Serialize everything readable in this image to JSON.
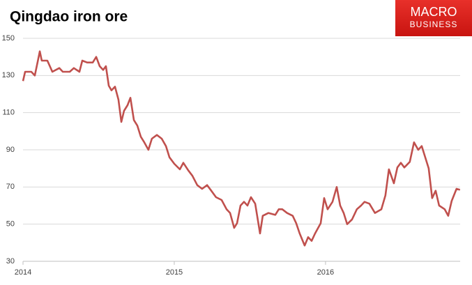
{
  "chart_data": {
    "type": "line",
    "title": "Qingdao iron ore",
    "logo": {
      "line1": "MACRO",
      "line2": "BUSINESS"
    },
    "x": [
      2014.0,
      2014.014,
      2014.055,
      2014.078,
      2014.101,
      2014.111,
      2014.124,
      2014.161,
      2014.194,
      2014.24,
      2014.263,
      2014.309,
      2014.336,
      2014.373,
      2014.392,
      2014.424,
      2014.461,
      2014.484,
      2014.507,
      2014.53,
      2014.548,
      2014.567,
      2014.585,
      2014.608,
      2014.631,
      2014.65,
      2014.668,
      2014.691,
      2014.71,
      2014.733,
      2014.756,
      2014.779,
      2014.802,
      2014.829,
      2014.852,
      2014.885,
      2014.917,
      2014.945,
      2014.968,
      2015.0,
      2015.037,
      2015.06,
      2015.092,
      2015.12,
      2015.152,
      2015.184,
      2015.217,
      2015.24,
      2015.276,
      2015.313,
      2015.346,
      2015.369,
      2015.396,
      2015.415,
      2015.438,
      2015.461,
      2015.484,
      2015.507,
      2015.535,
      2015.567,
      2015.585,
      2015.622,
      2015.668,
      2015.691,
      2015.714,
      2015.746,
      2015.783,
      2015.806,
      2015.829,
      2015.862,
      2015.885,
      2015.908,
      2015.931,
      2015.968,
      2015.991,
      2016.014,
      2016.046,
      2016.074,
      2016.097,
      2016.12,
      2016.143,
      2016.175,
      2016.207,
      2016.235,
      2016.258,
      2016.29,
      2016.327,
      2016.369,
      2016.396,
      2016.419,
      2016.452,
      2016.475,
      2016.498,
      2016.521,
      2016.557,
      2016.585,
      2016.613,
      2016.636,
      2016.659,
      2016.682,
      2016.705,
      2016.728,
      2016.751,
      2016.788,
      2016.811,
      2016.834,
      2016.866,
      2016.889
    ],
    "series": [
      {
        "color": "#c0504d",
        "values": [
          127,
          132,
          132,
          130,
          139,
          143,
          138,
          138,
          132,
          134,
          132,
          132,
          134,
          132,
          138,
          137,
          137,
          140,
          135,
          133,
          135,
          124.5,
          122,
          124,
          117,
          105,
          111,
          114,
          118,
          106,
          103,
          97,
          94,
          90,
          96,
          98,
          96,
          92,
          86,
          82.5,
          79.5,
          83,
          79,
          76,
          71,
          69,
          71,
          68.5,
          64.5,
          63,
          58,
          56,
          48,
          50.5,
          60,
          62,
          60,
          64.5,
          61,
          45,
          54.5,
          56,
          55,
          58,
          58,
          56,
          54.5,
          50.5,
          45,
          38.5,
          43,
          41,
          45,
          50.5,
          64,
          58,
          62,
          70,
          60,
          56,
          50,
          52.5,
          58,
          60,
          62,
          61,
          56,
          58,
          65.5,
          79.5,
          72,
          80.5,
          83,
          80.5,
          83.5,
          94,
          90,
          92,
          86,
          80,
          64,
          68,
          60,
          58,
          54.5,
          62.5,
          69,
          68.5
        ]
      }
    ],
    "xlim": [
      2014,
      2016.89
    ],
    "xticks": [
      2014,
      2015,
      2016
    ],
    "ylim": [
      30,
      150
    ],
    "yticks": [
      30,
      50,
      70,
      90,
      110,
      130,
      150
    ],
    "grid": true
  }
}
